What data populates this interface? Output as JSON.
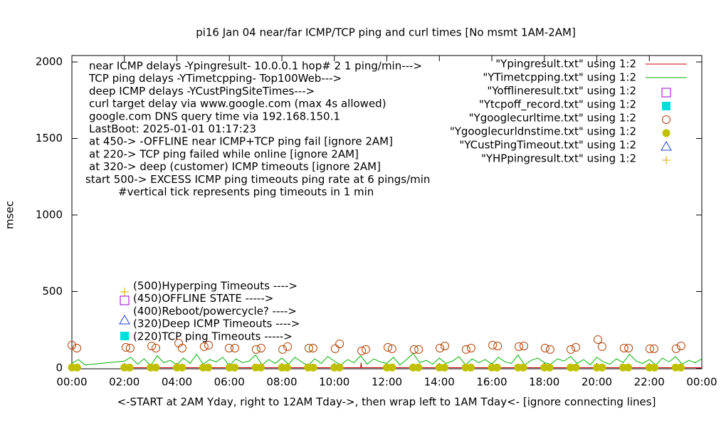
{
  "chart_data": {
    "type": "line",
    "title": "pi16 Jan 04  near/far ICMP/TCP ping and curl times [No msmt 1AM-2AM]",
    "ylabel": "msec",
    "xlabel": "<-START at 2AM Yday, right to 12AM Tday->, then wrap left to 1AM Tday<- [ignore connecting lines]",
    "annotations": [
      "near ICMP delays -Ypingresult- 10.0.0.1 hop# 2 1 ping/min--->",
      "TCP ping delays -YTimetcpping- Top100Web--->",
      "deep ICMP delays -YCustPingSiteTimes--->",
      "curl target delay via www.google.com (max 4s allowed)",
      "google.com DNS query time via 192.168.150.1",
      "LastBoot: 2025-01-01 01:17:23",
      "at 450-> -OFFLINE near ICMP+TCP ping fail [ignore 2AM]",
      "at 220-> TCP ping failed while online [ignore 2AM]",
      "at 320-> deep (customer) ICMP timeouts [ignore 2AM]",
      "start 500-> EXCESS ICMP ping timeouts ping rate at 6 pings/min",
      "#vertical tick represents ping timeouts in 1 min"
    ],
    "marker_notes": [
      "(500)Hyperping Timeouts ---->",
      "(450)OFFLINE STATE ----->",
      "(400)Reboot/powercycle? ---->",
      "(320)Deep ICMP Timeouts ---->",
      "(220)TCP ping Timeouts ----->"
    ],
    "xlim": [
      0,
      24
    ],
    "ylim": [
      -5,
      2042
    ],
    "xticks": [
      {
        "value": 0,
        "label": "00:00"
      },
      {
        "value": 2,
        "label": "02:00"
      },
      {
        "value": 4,
        "label": "04:00"
      },
      {
        "value": 6,
        "label": "06:00"
      },
      {
        "value": 8,
        "label": "08:00"
      },
      {
        "value": 10,
        "label": "10:00"
      },
      {
        "value": 12,
        "label": "12:00"
      },
      {
        "value": 14,
        "label": "14:00"
      },
      {
        "value": 16,
        "label": "16:00"
      },
      {
        "value": 18,
        "label": "18:00"
      },
      {
        "value": 20,
        "label": "20:00"
      },
      {
        "value": 22,
        "label": "22:00"
      },
      {
        "value": 24,
        "label": "00:00"
      }
    ],
    "yticks": [
      0,
      500,
      1000,
      1500,
      2000
    ],
    "grid": false,
    "legend": "top-right",
    "series": [
      {
        "name": "\"Ypingresult.txt\" using 1:2",
        "color": "#cc0000",
        "marker": "line",
        "x": [
          2,
          11,
          11.02,
          11.04,
          24
        ],
        "values": [
          2,
          2,
          35,
          2,
          2
        ]
      },
      {
        "name": "\"YTimetcpping.txt\" using 1:2",
        "color": "#00b000",
        "marker": "line",
        "x": [
          0,
          0.25,
          0.5,
          2,
          2.25,
          2.5,
          2.75,
          3,
          3.25,
          3.5,
          3.75,
          4,
          4.25,
          4.5,
          4.75,
          5,
          5.25,
          5.5,
          5.75,
          6,
          6.25,
          6.5,
          6.75,
          7,
          7.25,
          7.5,
          7.75,
          8,
          8.25,
          8.5,
          8.75,
          9,
          9.25,
          9.5,
          9.75,
          10,
          10.25,
          10.5,
          10.75,
          11,
          11.25,
          11.5,
          11.75,
          12,
          12.25,
          12.5,
          12.75,
          13,
          13.25,
          13.5,
          13.75,
          14,
          14.25,
          14.5,
          14.75,
          15,
          15.25,
          15.5,
          15.75,
          16,
          16.25,
          16.5,
          16.75,
          17,
          17.25,
          17.5,
          17.75,
          18,
          18.25,
          18.5,
          18.75,
          19,
          19.25,
          19.5,
          19.75,
          20,
          20.25,
          20.5,
          20.75,
          21,
          21.25,
          21.5,
          21.75,
          22,
          22.25,
          22.5,
          22.75,
          23,
          23.25,
          23.5,
          23.75,
          24
        ],
        "values": [
          30,
          55,
          20,
          45,
          70,
          25,
          60,
          15,
          80,
          35,
          50,
          20,
          65,
          30,
          90,
          25,
          55,
          40,
          70,
          15,
          60,
          35,
          45,
          85,
          20,
          55,
          30,
          65,
          25,
          70,
          40,
          15,
          60,
          30,
          75,
          45,
          20,
          55,
          35,
          80,
          25,
          60,
          40,
          30,
          70,
          20,
          55,
          95,
          35,
          50,
          25,
          65,
          30,
          45,
          75,
          20,
          60,
          35,
          55,
          25,
          70,
          40,
          30,
          85,
          20,
          50,
          65,
          35,
          25,
          60,
          45,
          75,
          30,
          55,
          20,
          70,
          40,
          25,
          60,
          35,
          90,
          45,
          30,
          55,
          20,
          65,
          40,
          75,
          25,
          50,
          35,
          60
        ]
      },
      {
        "name": "\"Yofflineresult.txt\" using 1:2",
        "color": "#9400d3",
        "marker": "open-square",
        "x": [],
        "values": []
      },
      {
        "name": "\"Ytcpoff_record.txt\" using 1:2",
        "color": "#00dede",
        "marker": "filled-square",
        "x": [],
        "values": []
      },
      {
        "name": "\"Ygooglecurltime.txt\" using 1:2",
        "color": "#b04000",
        "marker": "open-circle",
        "x": [
          0,
          0.19,
          2.06,
          2.22,
          3.04,
          3.2,
          4.07,
          4.2,
          5.04,
          5.21,
          5.99,
          6.21,
          7.02,
          7.21,
          8.03,
          8.22,
          9.03,
          9.19,
          10.03,
          10.2,
          11.04,
          11.2,
          12.04,
          12.2,
          13.04,
          13.21,
          14.02,
          14.21,
          15.02,
          15.21,
          16.03,
          16.22,
          17.03,
          17.22,
          18.03,
          18.22,
          19.01,
          19.2,
          20.04,
          20.2,
          21.04,
          21.21,
          22.02,
          22.18,
          23.02,
          23.21
        ],
        "values": [
          149,
          130,
          135,
          130,
          144,
          130,
          163,
          130,
          140,
          149,
          130,
          130,
          121,
          130,
          121,
          140,
          130,
          130,
          126,
          158,
          112,
          121,
          135,
          126,
          121,
          121,
          130,
          144,
          121,
          130,
          149,
          144,
          140,
          144,
          130,
          121,
          121,
          135,
          186,
          140,
          130,
          130,
          126,
          126,
          126,
          144
        ]
      },
      {
        "name": "\"Ygooglecurldnstime.txt\" using 1:2",
        "color": "#c0c000",
        "marker": "filled-circle",
        "x": [
          0,
          0.2,
          2,
          2.2,
          3,
          3.2,
          4,
          4.2,
          5,
          5.2,
          6,
          6.2,
          7,
          7.2,
          8,
          8.2,
          9,
          9.2,
          10,
          10.2,
          12,
          12.2,
          13,
          13.2,
          14,
          14.2,
          15,
          15.2,
          16,
          16.2,
          17,
          17.2,
          18,
          18.2,
          19,
          19.2,
          20,
          20.2,
          21,
          21.2,
          22,
          22.2,
          23,
          23.2
        ],
        "values": [
          3,
          3,
          3,
          3,
          3,
          3,
          3,
          3,
          3,
          3,
          3,
          3,
          3,
          3,
          3,
          3,
          3,
          3,
          3,
          3,
          3,
          3,
          3,
          3,
          3,
          3,
          3,
          3,
          3,
          3,
          3,
          3,
          3,
          3,
          3,
          3,
          3,
          3,
          3,
          3,
          3,
          3,
          3,
          3
        ]
      },
      {
        "name": "\"YCustPingTimeout.txt\" using 1:2",
        "color": "#2040d0",
        "marker": "open-triangle",
        "x": [],
        "values": []
      },
      {
        "name": "\"YHPpingresult.txt\" using 1:2",
        "color": "#e0a000",
        "marker": "plus",
        "x": [],
        "values": []
      }
    ]
  }
}
